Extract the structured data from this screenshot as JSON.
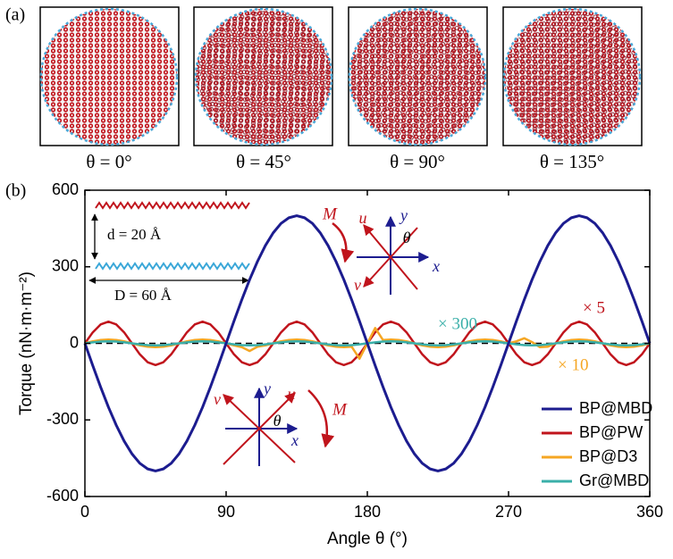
{
  "panel_a": {
    "label": "(a)",
    "captions": [
      "θ = 0°",
      "θ = 45°",
      "θ = 90°",
      "θ = 135°"
    ]
  },
  "chart_data": {
    "type": "line",
    "panel_label": "(b)",
    "x_label": "Angle θ (°)",
    "y_label": "Torque (nN·m·m⁻²)",
    "xlim": [
      0,
      360
    ],
    "xticks": [
      0,
      90,
      180,
      270,
      360
    ],
    "ylim": [
      -600,
      600
    ],
    "yticks": [
      -600,
      -300,
      0,
      300,
      600
    ],
    "x": [
      0,
      5,
      10,
      15,
      20,
      25,
      30,
      35,
      40,
      45,
      50,
      55,
      60,
      65,
      70,
      75,
      80,
      85,
      90,
      95,
      100,
      105,
      110,
      115,
      120,
      125,
      130,
      135,
      140,
      145,
      150,
      155,
      160,
      165,
      170,
      175,
      180,
      185,
      190,
      195,
      200,
      205,
      210,
      215,
      220,
      225,
      230,
      235,
      240,
      245,
      250,
      255,
      260,
      265,
      270,
      275,
      280,
      285,
      290,
      295,
      300,
      305,
      310,
      315,
      320,
      325,
      330,
      335,
      340,
      345,
      350,
      355,
      360
    ],
    "series": [
      {
        "name": "BP@MBD",
        "color": "#1c1c8f",
        "values": [
          0,
          -87,
          -171,
          -250,
          -321,
          -383,
          -433,
          -470,
          -492,
          -500,
          -492,
          -470,
          -433,
          -383,
          -321,
          -250,
          -171,
          -87,
          0,
          87,
          171,
          250,
          321,
          383,
          433,
          470,
          492,
          500,
          492,
          470,
          433,
          383,
          321,
          250,
          171,
          87,
          0,
          -87,
          -171,
          -250,
          -321,
          -383,
          -433,
          -470,
          -492,
          -500,
          -492,
          -470,
          -433,
          -383,
          -321,
          -250,
          -171,
          -87,
          0,
          87,
          171,
          250,
          321,
          383,
          433,
          470,
          492,
          500,
          492,
          470,
          433,
          383,
          321,
          250,
          171,
          87,
          0
        ]
      },
      {
        "name": "BP@PW",
        "color": "#c0141c",
        "values": [
          0,
          43,
          74,
          85,
          74,
          43,
          0,
          -43,
          -74,
          -85,
          -74,
          -43,
          0,
          43,
          74,
          85,
          74,
          43,
          0,
          -43,
          -74,
          -85,
          -74,
          -43,
          0,
          43,
          74,
          85,
          74,
          43,
          0,
          -43,
          -74,
          -85,
          -74,
          -43,
          0,
          43,
          74,
          85,
          74,
          43,
          0,
          -43,
          -74,
          -85,
          -74,
          -43,
          0,
          43,
          74,
          85,
          74,
          43,
          0,
          -43,
          -74,
          -85,
          -74,
          -43,
          0,
          43,
          74,
          85,
          74,
          43,
          0,
          -43,
          -74,
          -85,
          -74,
          -43,
          0
        ]
      },
      {
        "name": "BP@D3",
        "color": "#f5a623",
        "values": [
          0,
          8,
          13,
          15,
          13,
          8,
          0,
          -8,
          -13,
          -15,
          -13,
          -8,
          0,
          8,
          13,
          15,
          13,
          8,
          0,
          -8,
          -15,
          -30,
          -13,
          -8,
          0,
          8,
          13,
          15,
          13,
          8,
          0,
          -8,
          -13,
          -15,
          -13,
          -60,
          0,
          60,
          13,
          15,
          13,
          8,
          0,
          -8,
          -13,
          -15,
          -13,
          -8,
          0,
          8,
          13,
          15,
          13,
          8,
          0,
          8,
          20,
          5,
          -15,
          -13,
          0,
          8,
          13,
          15,
          13,
          8,
          0,
          -8,
          -13,
          -15,
          -13,
          -8,
          0
        ]
      },
      {
        "name": "Gr@MBD",
        "color": "#3aafa9",
        "values": [
          0,
          4,
          7,
          8,
          7,
          4,
          0,
          -4,
          -7,
          -8,
          -7,
          -4,
          0,
          4,
          7,
          8,
          7,
          4,
          0,
          -4,
          -7,
          -8,
          -7,
          -4,
          0,
          4,
          7,
          8,
          7,
          4,
          0,
          -4,
          -7,
          -8,
          -7,
          -4,
          0,
          4,
          7,
          8,
          7,
          4,
          0,
          -4,
          -7,
          -8,
          -7,
          -4,
          0,
          4,
          7,
          8,
          7,
          4,
          0,
          -4,
          -7,
          -8,
          -7,
          -4,
          0,
          4,
          7,
          8,
          7,
          4,
          0,
          -4,
          -7,
          -8,
          -7,
          -4,
          0
        ]
      }
    ],
    "annotations": [
      "× 300",
      "× 5",
      "× 10"
    ],
    "inset_labels": [
      "d = 20 Å",
      "D = 60 Å"
    ],
    "diagram_labels": {
      "M": "M",
      "u": "u",
      "v": "v",
      "x": "x",
      "y": "y",
      "theta": "θ"
    },
    "legend": "lower right"
  }
}
